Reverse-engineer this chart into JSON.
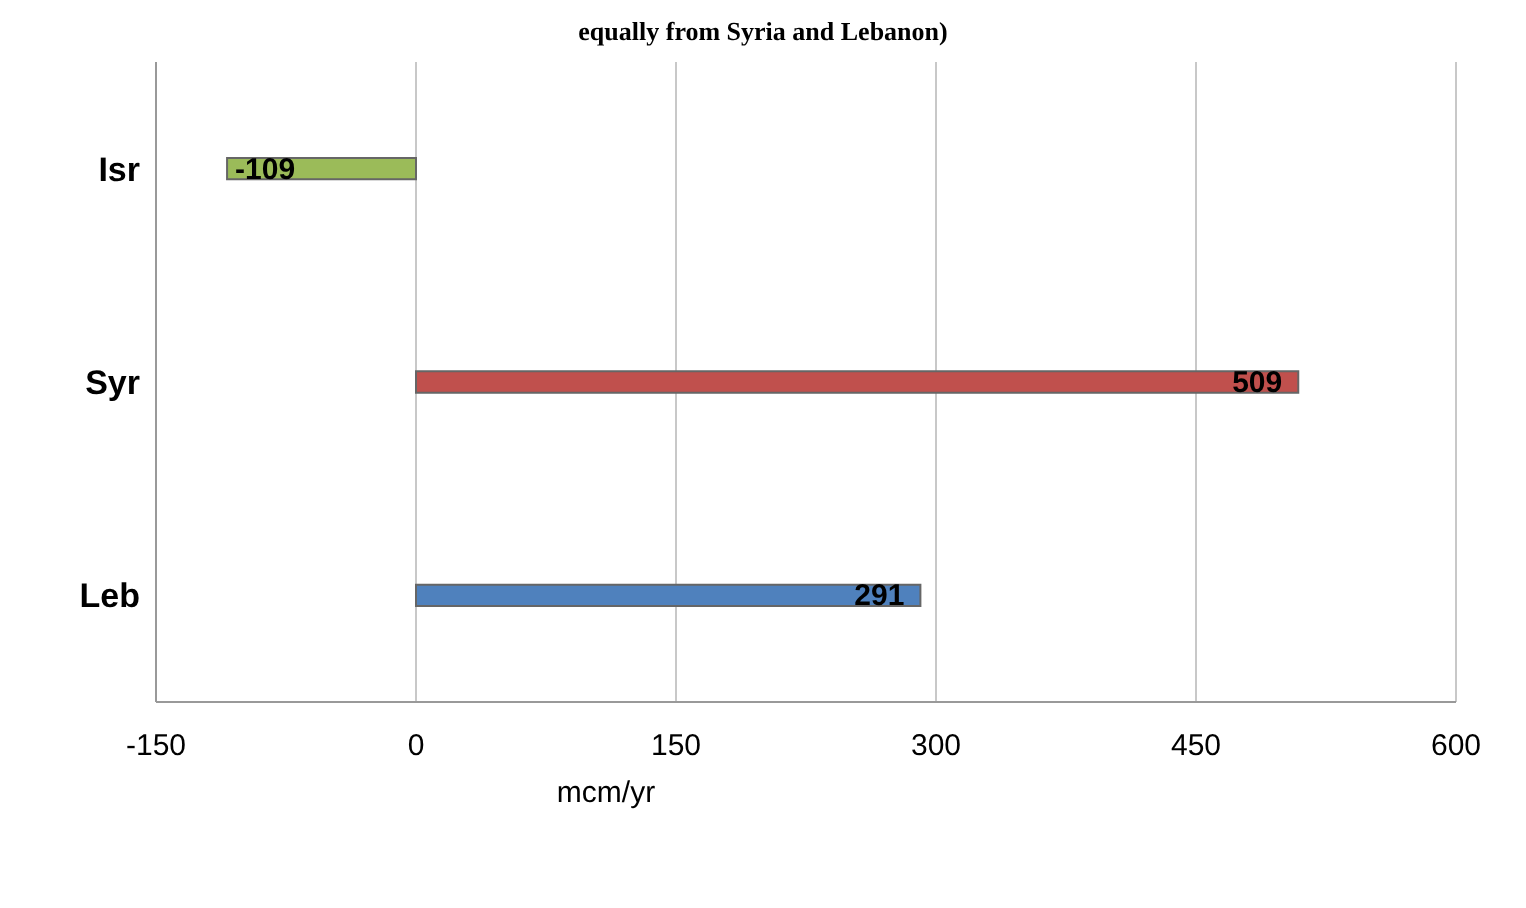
{
  "chart_data": {
    "type": "bar",
    "orientation": "horizontal",
    "title": "equally from Syria and Lebanon)",
    "xlabel": "mcm/yr",
    "categories": [
      "Isr",
      "Syr",
      "Leb"
    ],
    "values": [
      -109,
      509,
      291
    ],
    "colors": [
      "#9bbb59",
      "#c0504d",
      "#4f81bd"
    ],
    "xlim": [
      -150,
      600
    ],
    "xticks": [
      -150,
      0,
      150,
      300,
      450,
      600
    ],
    "grid": "x",
    "data_labels": true
  }
}
